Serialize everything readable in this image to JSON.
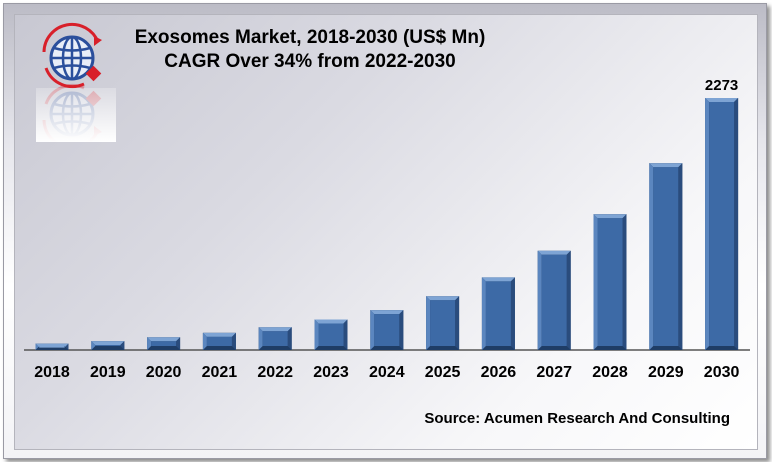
{
  "title_line1": "Exosomes Market, 2018-2030 (US$ Mn)",
  "title_line2": "CAGR Over 34% from 2022-2030",
  "source": "Source: Acumen Research And Consulting",
  "logo_icon": "globe-logo-icon",
  "colors": {
    "bar": "#3d6aa6",
    "bar_dark": "#1f3d66",
    "bar_light": "#7ea4d4",
    "logo_red": "#d8202a",
    "logo_blue": "#2b4f9c"
  },
  "chart_data": {
    "type": "bar",
    "categories": [
      "2018",
      "2019",
      "2020",
      "2021",
      "2022",
      "2023",
      "2024",
      "2025",
      "2026",
      "2027",
      "2028",
      "2029",
      "2030"
    ],
    "values": [
      58,
      80,
      115,
      155,
      205,
      275,
      360,
      485,
      655,
      895,
      1225,
      1685,
      2273
    ],
    "data_labels": [
      "",
      "",
      "",
      "",
      "",
      "",
      "",
      "",
      "",
      "",
      "",
      "",
      "2273"
    ],
    "title": "Exosomes Market, 2018-2030 (US$ Mn)",
    "subtitle": "CAGR Over 34% from 2022-2030",
    "xlabel": "",
    "ylabel": "",
    "ylim": [
      0,
      2300
    ],
    "grid": false,
    "legend": "none"
  }
}
